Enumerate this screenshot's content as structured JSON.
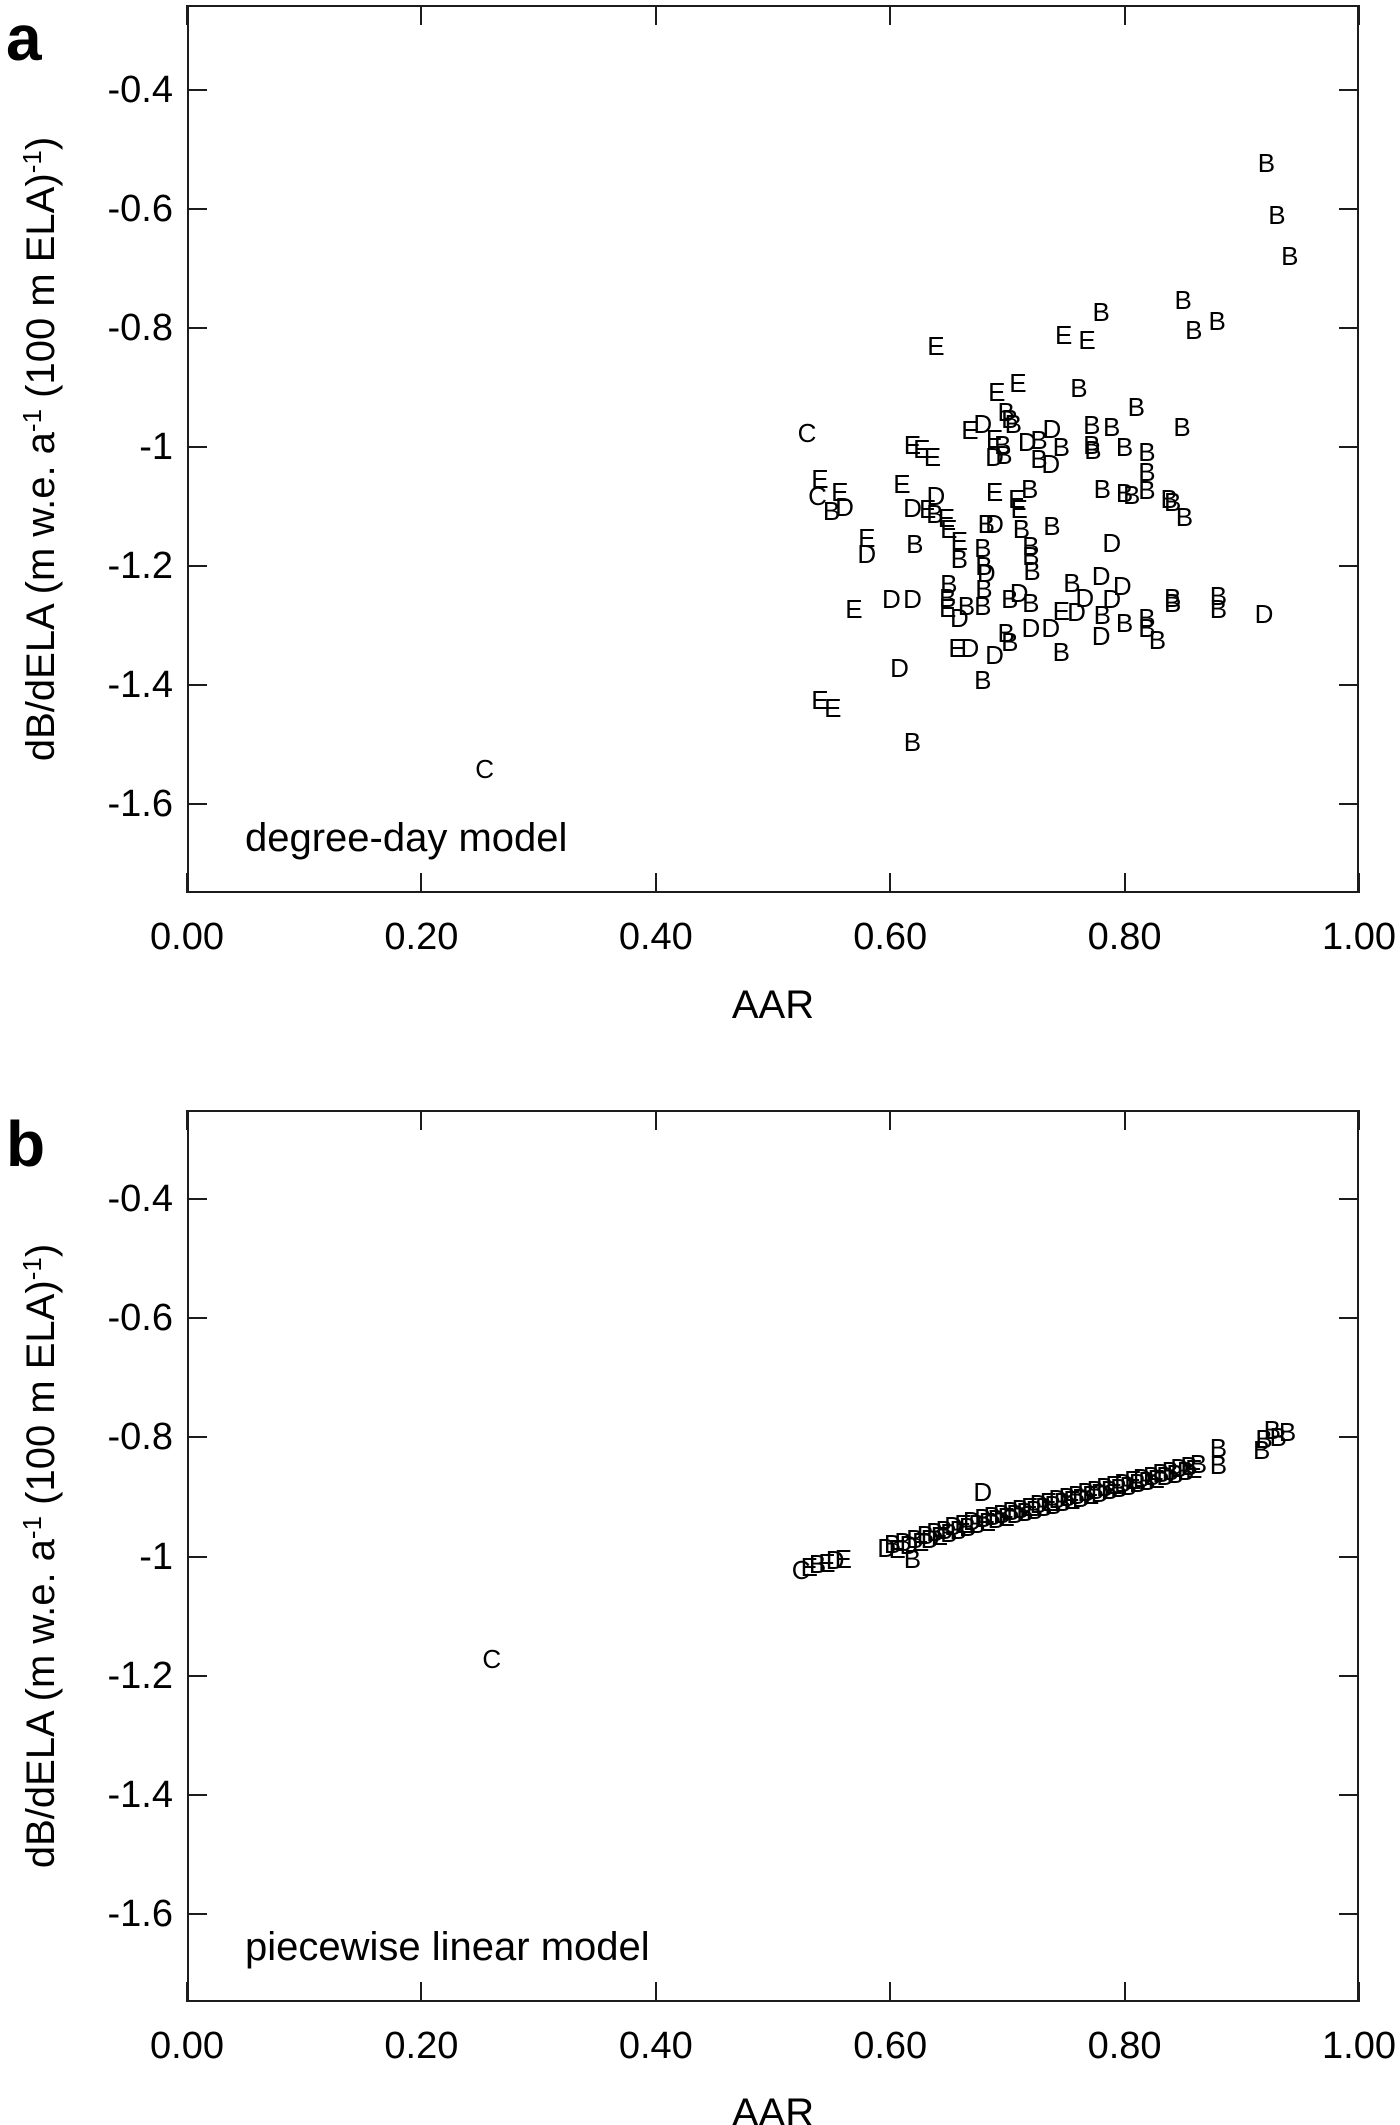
{
  "figure": {
    "panels": [
      {
        "panel_label": "a",
        "model_label": "degree-day model",
        "xlabel": "AAR",
        "ylabel_parts": {
          "pre": "dB/dELA (m w.e. a",
          "sup1": "-1",
          "mid": " (100 m ELA)",
          "sup2": "-1",
          "post": ")"
        }
      },
      {
        "panel_label": "b",
        "model_label": "piecewise linear model",
        "xlabel": "AAR",
        "ylabel_parts": {
          "pre": "dB/dELA (m w.e. a",
          "sup1": "-1",
          "mid": " (100 m ELA)",
          "sup2": "-1",
          "post": ")"
        }
      }
    ]
  },
  "chart_data": [
    {
      "type": "scatter",
      "title": "degree-day model",
      "xlabel": "AAR",
      "ylabel": "dB/dELA (m w.e. a-1 (100 m ELA)-1)",
      "xlim": [
        0.0,
        1.0
      ],
      "ylim": [
        -1.75,
        -0.25
      ],
      "grid": false,
      "legend": "none",
      "marker_style": "letter-glyphs",
      "x_ticks": [
        0.0,
        0.2,
        0.4,
        0.6,
        0.8,
        1.0
      ],
      "x_tick_labels": [
        "0.00",
        "0.20",
        "0.40",
        "0.60",
        "0.80",
        "1.00"
      ],
      "y_ticks": [
        -0.4,
        -0.6,
        -0.8,
        -1.0,
        -1.2,
        -1.4,
        -1.6
      ],
      "y_tick_labels": [
        "-0.4",
        "-0.6",
        "-0.8",
        "-1",
        "-1.2",
        "-1.4",
        "-1.6"
      ],
      "points": [
        [
          "B",
          0.921,
          -0.522
        ],
        [
          "B",
          0.93,
          -0.61
        ],
        [
          "B",
          0.941,
          -0.679
        ],
        [
          "B",
          0.85,
          -0.753
        ],
        [
          "B",
          0.78,
          -0.773
        ],
        [
          "B",
          0.859,
          -0.803
        ],
        [
          "B",
          0.879,
          -0.788
        ],
        [
          "E",
          0.768,
          -0.82
        ],
        [
          "E",
          0.748,
          -0.812
        ],
        [
          "E",
          0.639,
          -0.83
        ],
        [
          "E",
          0.691,
          -0.908
        ],
        [
          "E",
          0.709,
          -0.893
        ],
        [
          "B",
          0.761,
          -0.9
        ],
        [
          "B",
          0.81,
          -0.933
        ],
        [
          "C",
          0.529,
          -0.977
        ],
        [
          "E",
          0.619,
          -0.997
        ],
        [
          "E",
          0.627,
          -1.003
        ],
        [
          "E",
          0.636,
          -1.017
        ],
        [
          "E",
          0.668,
          -0.972
        ],
        [
          "D",
          0.679,
          -0.962
        ],
        [
          "B",
          0.699,
          -0.942
        ],
        [
          "B",
          0.702,
          -0.953
        ],
        [
          "B",
          0.705,
          -0.962
        ],
        [
          "E",
          0.689,
          -0.987
        ],
        [
          "B",
          0.696,
          -0.997
        ],
        [
          "D",
          0.717,
          -0.992
        ],
        [
          "B",
          0.727,
          -0.988
        ],
        [
          "D",
          0.738,
          -0.97
        ],
        [
          "B",
          0.746,
          -1.0
        ],
        [
          "D",
          0.689,
          -1.017
        ],
        [
          "B",
          0.697,
          -1.013
        ],
        [
          "B",
          0.727,
          -1.02
        ],
        [
          "D",
          0.737,
          -1.028
        ],
        [
          "B",
          0.772,
          -0.963
        ],
        [
          "B",
          0.789,
          -0.967
        ],
        [
          "B",
          0.849,
          -0.967
        ],
        [
          "B",
          0.772,
          -0.997
        ],
        [
          "B",
          0.773,
          -1.005
        ],
        [
          "B",
          0.8,
          -1.0
        ],
        [
          "B",
          0.819,
          -1.008
        ],
        [
          "E",
          0.54,
          -1.053
        ],
        [
          "C",
          0.538,
          -1.083
        ],
        [
          "E",
          0.557,
          -1.075
        ],
        [
          "B",
          0.55,
          -1.108
        ],
        [
          "D",
          0.561,
          -1.1
        ],
        [
          "E",
          0.61,
          -1.063
        ],
        [
          "D",
          0.639,
          -1.083
        ],
        [
          "D",
          0.619,
          -1.103
        ],
        [
          "E",
          0.632,
          -1.105
        ],
        [
          "B",
          0.638,
          -1.112
        ],
        [
          "E",
          0.648,
          -1.12
        ],
        [
          "E",
          0.65,
          -1.137
        ],
        [
          "B",
          0.682,
          -1.13
        ],
        [
          "D",
          0.689,
          -1.13
        ],
        [
          "E",
          0.689,
          -1.075
        ],
        [
          "B",
          0.719,
          -1.07
        ],
        [
          "E",
          0.708,
          -1.087
        ],
        [
          "E",
          0.71,
          -1.105
        ],
        [
          "B",
          0.712,
          -1.137
        ],
        [
          "B",
          0.738,
          -1.133
        ],
        [
          "B",
          0.781,
          -1.07
        ],
        [
          "B",
          0.8,
          -1.078
        ],
        [
          "B",
          0.806,
          -1.08
        ],
        [
          "B",
          0.819,
          -1.042
        ],
        [
          "B",
          0.819,
          -1.072
        ],
        [
          "B",
          0.838,
          -1.087
        ],
        [
          "B",
          0.841,
          -1.093
        ],
        [
          "B",
          0.851,
          -1.117
        ],
        [
          "E",
          0.58,
          -1.153
        ],
        [
          "D",
          0.58,
          -1.18
        ],
        [
          "B",
          0.621,
          -1.163
        ],
        [
          "E",
          0.659,
          -1.158
        ],
        [
          "B",
          0.679,
          -1.17
        ],
        [
          "B",
          0.659,
          -1.188
        ],
        [
          "B",
          0.68,
          -1.2
        ],
        [
          "D",
          0.682,
          -1.212
        ],
        [
          "B",
          0.72,
          -1.167
        ],
        [
          "B",
          0.72,
          -1.183
        ],
        [
          "B",
          0.721,
          -1.208
        ],
        [
          "D",
          0.789,
          -1.162
        ],
        [
          "D",
          0.78,
          -1.217
        ],
        [
          "E",
          0.569,
          -1.272
        ],
        [
          "D",
          0.601,
          -1.255
        ],
        [
          "D",
          0.619,
          -1.255
        ],
        [
          "B",
          0.65,
          -1.23
        ],
        [
          "B",
          0.649,
          -1.253
        ],
        [
          "E",
          0.649,
          -1.27
        ],
        [
          "B",
          0.665,
          -1.267
        ],
        [
          "D",
          0.659,
          -1.287
        ],
        [
          "B",
          0.68,
          -1.238
        ],
        [
          "B",
          0.679,
          -1.267
        ],
        [
          "D",
          0.71,
          -1.245
        ],
        [
          "B",
          0.702,
          -1.255
        ],
        [
          "B",
          0.72,
          -1.262
        ],
        [
          "B",
          0.755,
          -1.228
        ],
        [
          "D",
          0.759,
          -1.278
        ],
        [
          "E",
          0.746,
          -1.275
        ],
        [
          "D",
          0.72,
          -1.305
        ],
        [
          "D",
          0.737,
          -1.305
        ],
        [
          "D",
          0.798,
          -1.233
        ],
        [
          "D",
          0.766,
          -1.253
        ],
        [
          "D",
          0.789,
          -1.255
        ],
        [
          "B",
          0.781,
          -1.283
        ],
        [
          "B",
          0.8,
          -1.295
        ],
        [
          "B",
          0.819,
          -1.287
        ],
        [
          "B",
          0.841,
          -1.253
        ],
        [
          "B",
          0.841,
          -1.263
        ],
        [
          "B",
          0.88,
          -1.25
        ],
        [
          "B",
          0.88,
          -1.272
        ],
        [
          "D",
          0.919,
          -1.28
        ],
        [
          "B",
          0.699,
          -1.313
        ],
        [
          "B",
          0.702,
          -1.328
        ],
        [
          "D",
          0.689,
          -1.35
        ],
        [
          "E",
          0.657,
          -1.338
        ],
        [
          "D",
          0.668,
          -1.338
        ],
        [
          "B",
          0.746,
          -1.345
        ],
        [
          "B",
          0.679,
          -1.392
        ],
        [
          "D",
          0.608,
          -1.372
        ],
        [
          "B",
          0.819,
          -1.305
        ],
        [
          "B",
          0.828,
          -1.325
        ],
        [
          "D",
          0.78,
          -1.317
        ],
        [
          "E",
          0.54,
          -1.425
        ],
        [
          "E",
          0.551,
          -1.438
        ],
        [
          "B",
          0.619,
          -1.495
        ],
        [
          "C",
          0.254,
          -1.542
        ]
      ]
    },
    {
      "type": "scatter",
      "title": "piecewise linear model",
      "xlabel": "AAR",
      "ylabel": "dB/dELA (m w.e. a-1 (100 m ELA)-1)",
      "xlim": [
        0.0,
        1.0
      ],
      "ylim": [
        -1.75,
        -0.25
      ],
      "grid": false,
      "legend": "none",
      "marker_style": "letter-glyphs",
      "x_ticks": [
        0.0,
        0.2,
        0.4,
        0.6,
        0.8,
        1.0
      ],
      "x_tick_labels": [
        "0.00",
        "0.20",
        "0.40",
        "0.60",
        "0.80",
        "1.00"
      ],
      "y_ticks": [
        -0.4,
        -0.6,
        -0.8,
        -1.0,
        -1.2,
        -1.4,
        -1.6
      ],
      "y_tick_labels": [
        "-0.4",
        "-0.6",
        "-0.8",
        "-1",
        "-1.2",
        "-1.4",
        "-1.6"
      ],
      "points": [
        [
          "C",
          0.524,
          -1.022
        ],
        [
          "E",
          0.531,
          -1.017
        ],
        [
          "B",
          0.538,
          -1.013
        ],
        [
          "E",
          0.546,
          -1.01
        ],
        [
          "D",
          0.553,
          -1.006
        ],
        [
          "E",
          0.56,
          -1.004
        ],
        [
          "D",
          0.597,
          -0.985
        ],
        [
          "B",
          0.602,
          -0.979
        ],
        [
          "E",
          0.606,
          -0.988
        ],
        [
          "B",
          0.611,
          -0.975
        ],
        [
          "D",
          0.616,
          -0.981
        ],
        [
          "B",
          0.619,
          -1.004
        ],
        [
          "B",
          0.621,
          -0.97
        ],
        [
          "E",
          0.626,
          -0.976
        ],
        [
          "B",
          0.63,
          -0.963
        ],
        [
          "D",
          0.634,
          -0.97
        ],
        [
          "B",
          0.638,
          -0.958
        ],
        [
          "E",
          0.642,
          -0.965
        ],
        [
          "B",
          0.646,
          -0.955
        ],
        [
          "B",
          0.65,
          -0.96
        ],
        [
          "D",
          0.654,
          -0.949
        ],
        [
          "B",
          0.658,
          -0.955
        ],
        [
          "E",
          0.662,
          -0.945
        ],
        [
          "B",
          0.666,
          -0.95
        ],
        [
          "D",
          0.67,
          -0.94
        ],
        [
          "B",
          0.674,
          -0.946
        ],
        [
          "D",
          0.679,
          -0.892
        ],
        [
          "B",
          0.679,
          -0.936
        ],
        [
          "E",
          0.683,
          -0.942
        ],
        [
          "B",
          0.687,
          -0.932
        ],
        [
          "D",
          0.691,
          -0.937
        ],
        [
          "B",
          0.695,
          -0.928
        ],
        [
          "E",
          0.699,
          -0.933
        ],
        [
          "B",
          0.703,
          -0.924
        ],
        [
          "D",
          0.707,
          -0.929
        ],
        [
          "B",
          0.711,
          -0.92
        ],
        [
          "B",
          0.715,
          -0.925
        ],
        [
          "E",
          0.719,
          -0.916
        ],
        [
          "B",
          0.723,
          -0.921
        ],
        [
          "D",
          0.727,
          -0.912
        ],
        [
          "B",
          0.731,
          -0.917
        ],
        [
          "E",
          0.735,
          -0.908
        ],
        [
          "B",
          0.739,
          -0.913
        ],
        [
          "D",
          0.743,
          -0.904
        ],
        [
          "B",
          0.747,
          -0.909
        ],
        [
          "B",
          0.751,
          -0.9
        ],
        [
          "E",
          0.755,
          -0.905
        ],
        [
          "B",
          0.759,
          -0.896
        ],
        [
          "D",
          0.763,
          -0.901
        ],
        [
          "B",
          0.767,
          -0.892
        ],
        [
          "E",
          0.771,
          -0.897
        ],
        [
          "B",
          0.775,
          -0.888
        ],
        [
          "D",
          0.779,
          -0.893
        ],
        [
          "B",
          0.783,
          -0.884
        ],
        [
          "B",
          0.787,
          -0.889
        ],
        [
          "E",
          0.791,
          -0.88
        ],
        [
          "B",
          0.795,
          -0.885
        ],
        [
          "D",
          0.799,
          -0.876
        ],
        [
          "B",
          0.803,
          -0.881
        ],
        [
          "E",
          0.807,
          -0.872
        ],
        [
          "B",
          0.811,
          -0.877
        ],
        [
          "D",
          0.815,
          -0.868
        ],
        [
          "B",
          0.819,
          -0.873
        ],
        [
          "B",
          0.823,
          -0.864
        ],
        [
          "E",
          0.827,
          -0.869
        ],
        [
          "B",
          0.831,
          -0.86
        ],
        [
          "D",
          0.835,
          -0.865
        ],
        [
          "B",
          0.839,
          -0.856
        ],
        [
          "B",
          0.843,
          -0.861
        ],
        [
          "D",
          0.847,
          -0.852
        ],
        [
          "B",
          0.852,
          -0.857
        ],
        [
          "B",
          0.855,
          -0.848
        ],
        [
          "E",
          0.859,
          -0.853
        ],
        [
          "B",
          0.863,
          -0.844
        ],
        [
          "B",
          0.88,
          -0.818
        ],
        [
          "B",
          0.88,
          -0.847
        ],
        [
          "B",
          0.917,
          -0.821
        ],
        [
          "B",
          0.919,
          -0.803
        ],
        [
          "B",
          0.926,
          -0.787
        ],
        [
          "B",
          0.931,
          -0.8
        ],
        [
          "B",
          0.939,
          -0.791
        ],
        [
          "C",
          0.26,
          -1.171
        ]
      ]
    }
  ]
}
